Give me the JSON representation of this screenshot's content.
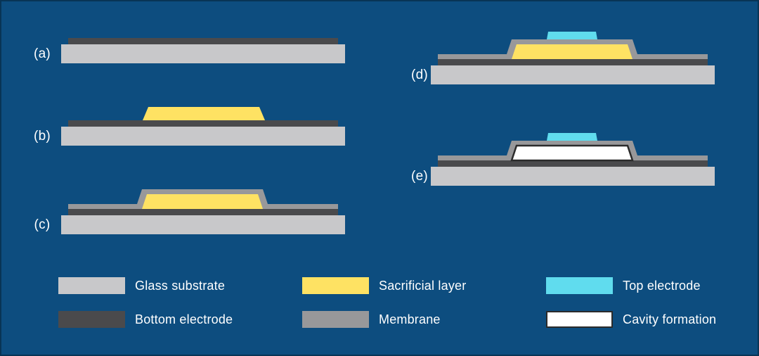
{
  "figure": {
    "background_color": "#0d4d7f",
    "layer_colors": {
      "glass": "#c8c8ca",
      "bottom_electrode": "#4a4a4c",
      "sacrificial": "#fee263",
      "sacrificial_capped": "#fee263",
      "membrane": "#98989a",
      "cavity": "#ffffff",
      "cavity_border": "#2b2b2b",
      "top_electrode": "#60dcee"
    },
    "steps": [
      {
        "id": "a",
        "label": "(a)",
        "layers": [
          "glass",
          "bottom_electrode"
        ]
      },
      {
        "id": "b",
        "label": "(b)",
        "layers": [
          "glass",
          "bottom_electrode",
          "sacrificial"
        ]
      },
      {
        "id": "c",
        "label": "(c)",
        "layers": [
          "glass",
          "bottom_electrode",
          "membrane",
          "sacrificial_capped"
        ]
      },
      {
        "id": "d",
        "label": "(d)",
        "layers": [
          "glass",
          "bottom_electrode",
          "membrane",
          "sacrificial_capped",
          "top_electrode"
        ]
      },
      {
        "id": "e",
        "label": "(e)",
        "layers": [
          "glass",
          "bottom_electrode",
          "membrane",
          "cavity",
          "top_electrode"
        ]
      }
    ],
    "legend": {
      "items": [
        {
          "id": "glass-substrate",
          "label": "Glass substrate",
          "color": "#c8c8ca"
        },
        {
          "id": "bottom-electrode",
          "label": "Bottom electrode",
          "color": "#4a4a4c"
        },
        {
          "id": "sacrificial-layer",
          "label": "Sacrificial layer",
          "color": "#fee263"
        },
        {
          "id": "membrane",
          "label": "Membrane",
          "color": "#98989a"
        },
        {
          "id": "top-electrode",
          "label": "Top electrode",
          "color": "#60dcee"
        },
        {
          "id": "cavity-formation",
          "label": "Cavity formation",
          "color": "#ffffff",
          "border_color": "#2b2b2b"
        }
      ]
    }
  }
}
